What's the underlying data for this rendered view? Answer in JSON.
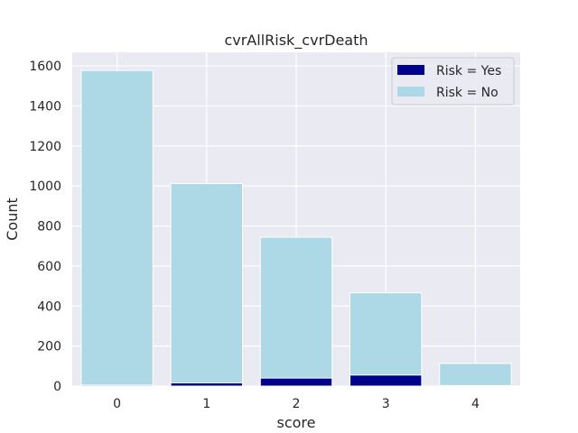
{
  "chart_data": {
    "type": "bar",
    "title": "cvrAllRisk_cvrDeath",
    "xlabel": "score",
    "ylabel": "Count",
    "categories": [
      "0",
      "1",
      "2",
      "3",
      "4"
    ],
    "series": [
      {
        "name": "Risk = No",
        "values": [
          1577,
          1012,
          744,
          466,
          113
        ],
        "color": "#add8e6"
      },
      {
        "name": "Risk = Yes",
        "values": [
          5,
          16,
          40,
          55,
          3
        ],
        "color": "#00008b"
      }
    ],
    "ylim": [
      0,
      1668
    ],
    "yticks": [
      0,
      200,
      400,
      600,
      800,
      1000,
      1200,
      1400,
      1600
    ],
    "grid": true,
    "legend_position": "top-right",
    "legend_order": [
      "Risk = Yes",
      "Risk = No"
    ],
    "background_color": "#eaeaf2"
  }
}
